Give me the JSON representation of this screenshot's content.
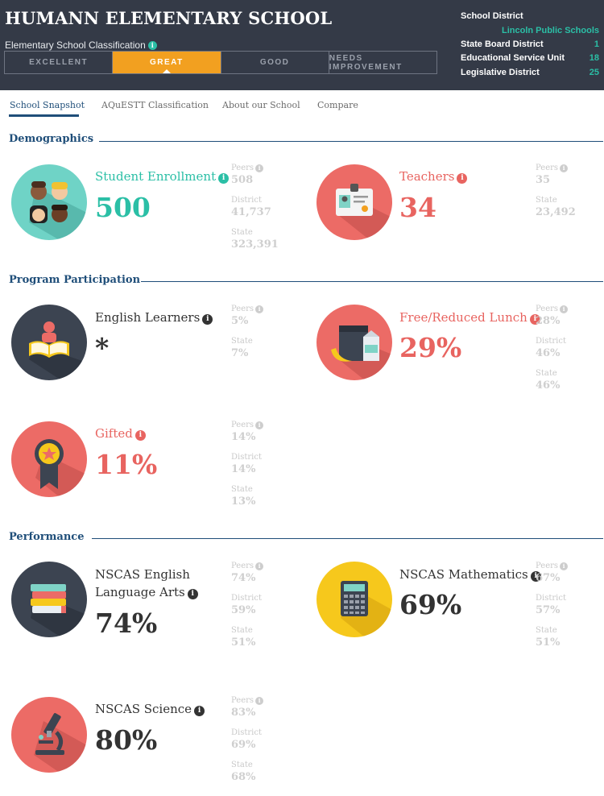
{
  "header": {
    "school_name": "HUMANN ELEMENTARY SCHOOL",
    "classification_label": "Elementary School Classification",
    "ratings": [
      "EXCELLENT",
      "GREAT",
      "GOOD",
      "NEEDS IMPROVEMENT"
    ],
    "active_rating": "GREAT",
    "district_panel": {
      "school_district_label": "School District",
      "school_district_value": "Lincoln Public Schools",
      "state_board_label": "State Board District",
      "state_board_value": "1",
      "esu_label": "Educational Service Unit",
      "esu_value": "18",
      "legislative_label": "Legislative District",
      "legislative_value": "25"
    }
  },
  "tabs": [
    "School Snapshot",
    "AQuESTT Classification",
    "About our School",
    "Compare"
  ],
  "active_tab": "School Snapshot",
  "sections": {
    "demographics": "Demographics",
    "program": "Program Participation",
    "performance": "Performance"
  },
  "stat_labels": {
    "peers": "Peers",
    "district": "District",
    "state": "State"
  },
  "metrics": {
    "enrollment": {
      "label": "Student Enrollment",
      "value": "500",
      "peers": "508",
      "district": "41,737",
      "state": "323,391",
      "icon": "students-icon"
    },
    "teachers": {
      "label": "Teachers",
      "value": "34",
      "peers": "35",
      "state": "23,492",
      "icon": "id-badge-icon"
    },
    "english_learners": {
      "label": "English Learners",
      "value": "*",
      "peers": "5%",
      "state": "7%",
      "icon": "reading-book-icon"
    },
    "lunch": {
      "label": "Free/Reduced Lunch",
      "value": "29%",
      "peers": "28%",
      "district": "46%",
      "state": "46%",
      "icon": "lunch-icon"
    },
    "gifted": {
      "label": "Gifted",
      "value": "11%",
      "peers": "14%",
      "district": "14%",
      "state": "13%",
      "icon": "award-ribbon-icon"
    },
    "ela": {
      "label_line1": "NSCAS English",
      "label_line2": "Language Arts",
      "value": "74%",
      "peers": "74%",
      "district": "59%",
      "state": "51%",
      "icon": "books-stack-icon"
    },
    "math": {
      "label": "NSCAS Mathematics",
      "value": "69%",
      "peers": "67%",
      "district": "57%",
      "state": "51%",
      "icon": "calculator-icon"
    },
    "science": {
      "label": "NSCAS Science",
      "value": "80%",
      "peers": "83%",
      "district": "69%",
      "state": "68%",
      "icon": "microscope-icon"
    }
  },
  "colors": {
    "header_bg": "#343a47",
    "accent_orange": "#f2a020",
    "teal": "#2bbfa6",
    "red": "#e86460",
    "navy": "#1f4e79",
    "yellow": "#f6c81c"
  }
}
